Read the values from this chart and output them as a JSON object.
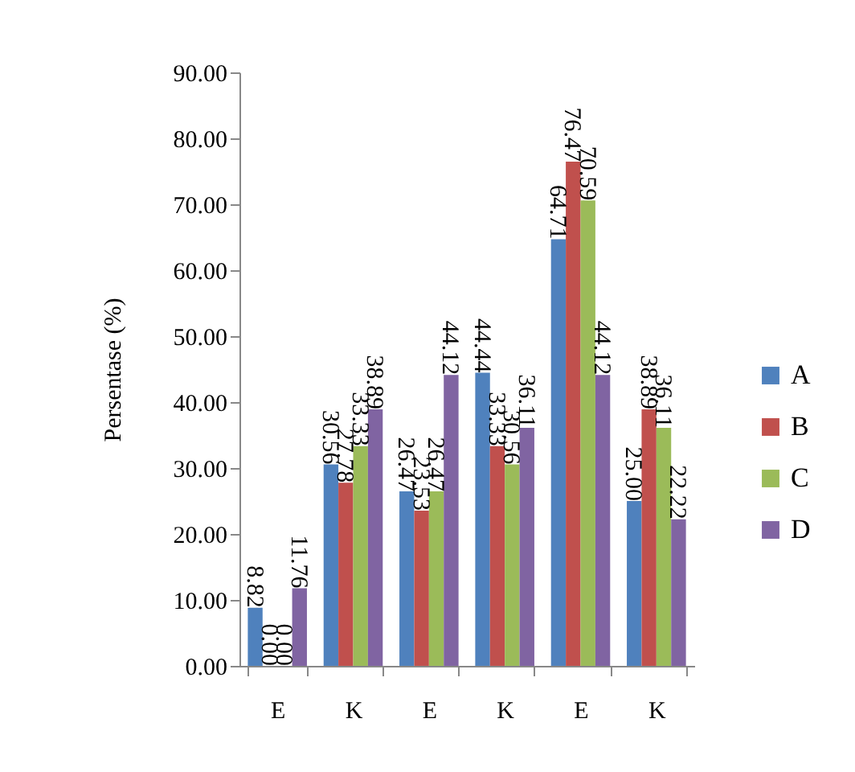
{
  "chart_data": {
    "type": "bar",
    "ylabel": "Persentase (%)",
    "categories": [
      "E",
      "K",
      "E",
      "K",
      "E",
      "K"
    ],
    "series": [
      {
        "name": "A",
        "color": "#4f81bd",
        "values": [
          8.82,
          30.56,
          26.47,
          44.44,
          64.71,
          25.0
        ],
        "value_labels": [
          "8.82",
          "30.56",
          "26.47",
          "44.44",
          "64.71",
          "25.00"
        ]
      },
      {
        "name": "B",
        "color": "#c0504d",
        "values": [
          0.0,
          27.78,
          23.53,
          33.33,
          76.47,
          38.89
        ],
        "value_labels": [
          "0.00",
          "27.78",
          "23.53",
          "33.33",
          "76.47",
          "38.89"
        ]
      },
      {
        "name": "C",
        "color": "#9bbb59",
        "values": [
          0.0,
          33.33,
          26.47,
          30.56,
          70.59,
          36.11
        ],
        "value_labels": [
          "0.00",
          "33.33",
          "26.47",
          "30.56",
          "70.59",
          "36.11"
        ]
      },
      {
        "name": "D",
        "color": "#8064a2",
        "values": [
          11.76,
          38.89,
          44.12,
          36.11,
          44.12,
          22.22
        ],
        "value_labels": [
          "11.76",
          "38.89",
          "44.12",
          "36.11",
          "44.12",
          "22.22"
        ]
      }
    ],
    "ylim": [
      0,
      90
    ],
    "yticks": [
      {
        "value": 0,
        "label": "0.00"
      },
      {
        "value": 10,
        "label": "10.00"
      },
      {
        "value": 20,
        "label": "20.00"
      },
      {
        "value": 30,
        "label": "30.00"
      },
      {
        "value": 40,
        "label": "40.00"
      },
      {
        "value": 50,
        "label": "50.00"
      },
      {
        "value": 60,
        "label": "60.00"
      },
      {
        "value": 70,
        "label": "70.00"
      },
      {
        "value": 80,
        "label": "80.00"
      },
      {
        "value": 90,
        "label": "90.00"
      }
    ],
    "grid": false,
    "legend": "right"
  }
}
